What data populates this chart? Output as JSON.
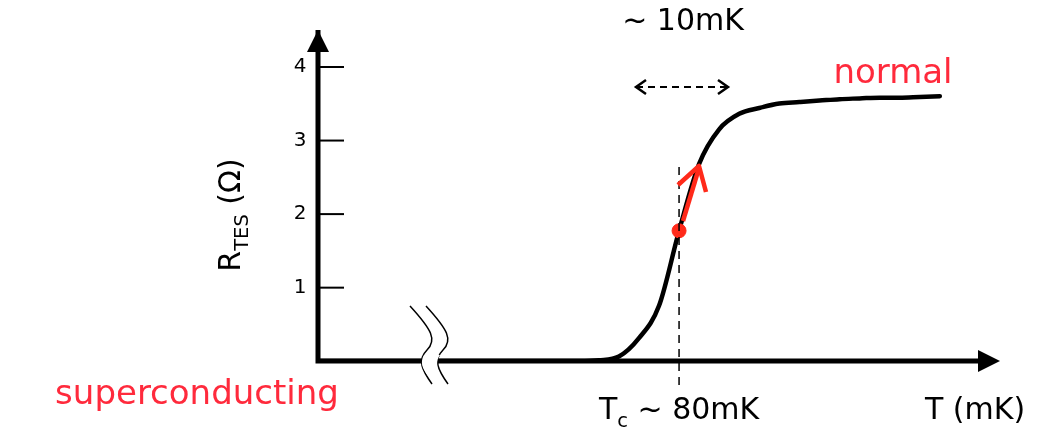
{
  "chart_data": {
    "type": "line",
    "xlabel": "T (mK)",
    "ylabel": "R$_{TES}$ (Ω)",
    "categories": [
      null,
      null,
      null,
      null,
      null,
      null,
      null,
      null,
      null,
      null,
      null,
      null,
      null,
      null,
      null,
      null,
      null,
      null,
      "T$_{c}$ ~ 80mK",
      null,
      null,
      null,
      null,
      null,
      null,
      null,
      null,
      null,
      null,
      null,
      null,
      null,
      null,
      null,
      null
    ],
    "series": [
      {
        "color": "#000000",
        "marker": "none",
        "values": [
          0,
          0,
          0,
          0,
          0,
          0,
          0,
          0,
          0,
          0,
          0,
          0,
          0,
          0,
          0.01,
          0.06,
          0.31,
          0.75,
          1.77,
          2.68,
          3.15,
          3.36,
          3.44,
          3.5,
          3.52,
          3.54,
          3.56,
          3.57,
          3.58,
          3.58,
          3.59,
          3.6,
          null,
          null,
          null
        ]
      },
      {
        "type": "scatter",
        "color": "#ff2a1a",
        "marker": "circle",
        "values": [
          null,
          null,
          null,
          null,
          null,
          null,
          null,
          null,
          null,
          null,
          null,
          null,
          null,
          null,
          null,
          null,
          null,
          null,
          1.77,
          null,
          null,
          null,
          null,
          null,
          null,
          null,
          null,
          null,
          null,
          null,
          null,
          null,
          null,
          null,
          null
        ]
      }
    ],
    "ylim": [
      0,
      4.5
    ],
    "yticks": [
      1,
      2,
      3,
      4
    ],
    "legend": false,
    "ref_lines": [
      {
        "axis": "x",
        "value": "T$_{c}$ ~ 80mK",
        "line_style": "dashed",
        "color": "#000000"
      }
    ],
    "annotations": [
      "~ 10mK",
      "normal",
      "superconducting"
    ]
  }
}
